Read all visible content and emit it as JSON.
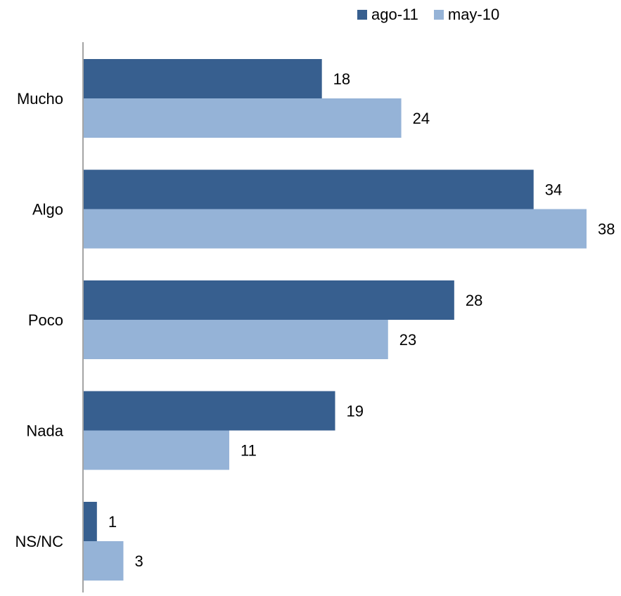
{
  "chart_data": {
    "type": "bar",
    "orientation": "horizontal",
    "categories": [
      "Mucho",
      "Algo",
      "Poco",
      "Nada",
      "NS/NC"
    ],
    "series": [
      {
        "name": "ago-11",
        "color": "#375F8F",
        "values": [
          18,
          34,
          28,
          19,
          1
        ]
      },
      {
        "name": "may-10",
        "color": "#95B3D7",
        "values": [
          24,
          38,
          23,
          11,
          3
        ]
      }
    ],
    "xlim": [
      0,
      38
    ],
    "data_labels": true,
    "grid": false,
    "legend_position": "top-right"
  }
}
